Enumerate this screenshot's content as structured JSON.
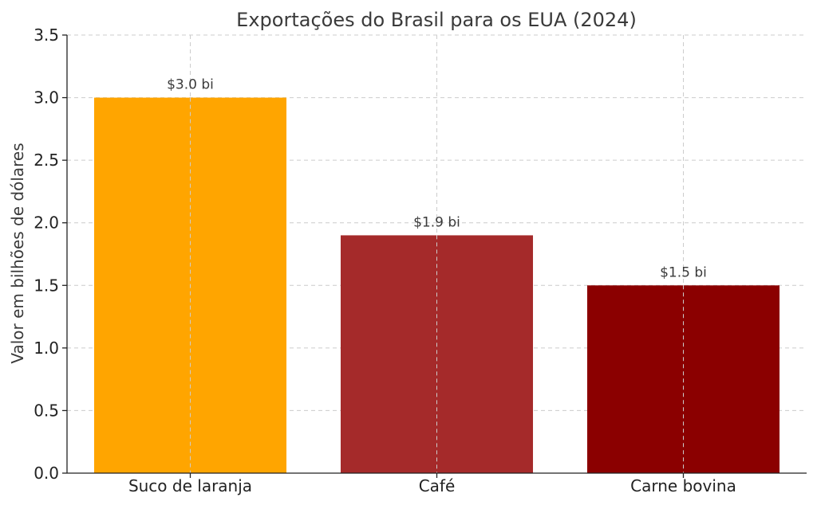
{
  "chart_data": {
    "type": "bar",
    "title": "Exportações do Brasil para os EUA (2024)",
    "xlabel": "",
    "ylabel": "Valor em bilhões de dólares",
    "categories": [
      "Suco de laranja",
      "Café",
      "Carne bovina"
    ],
    "values": [
      3.0,
      1.9,
      1.5
    ],
    "data_labels": [
      "$3.0 bi",
      "$1.9 bi",
      "$1.5 bi"
    ],
    "colors": [
      "#ffa500",
      "#a52a2a",
      "#8b0000"
    ],
    "ylim": [
      0,
      3.5
    ],
    "yticks": [
      "0.0",
      "0.5",
      "1.0",
      "1.5",
      "2.0",
      "2.5",
      "3.0",
      "3.5"
    ],
    "grid": true,
    "legend": "none"
  }
}
